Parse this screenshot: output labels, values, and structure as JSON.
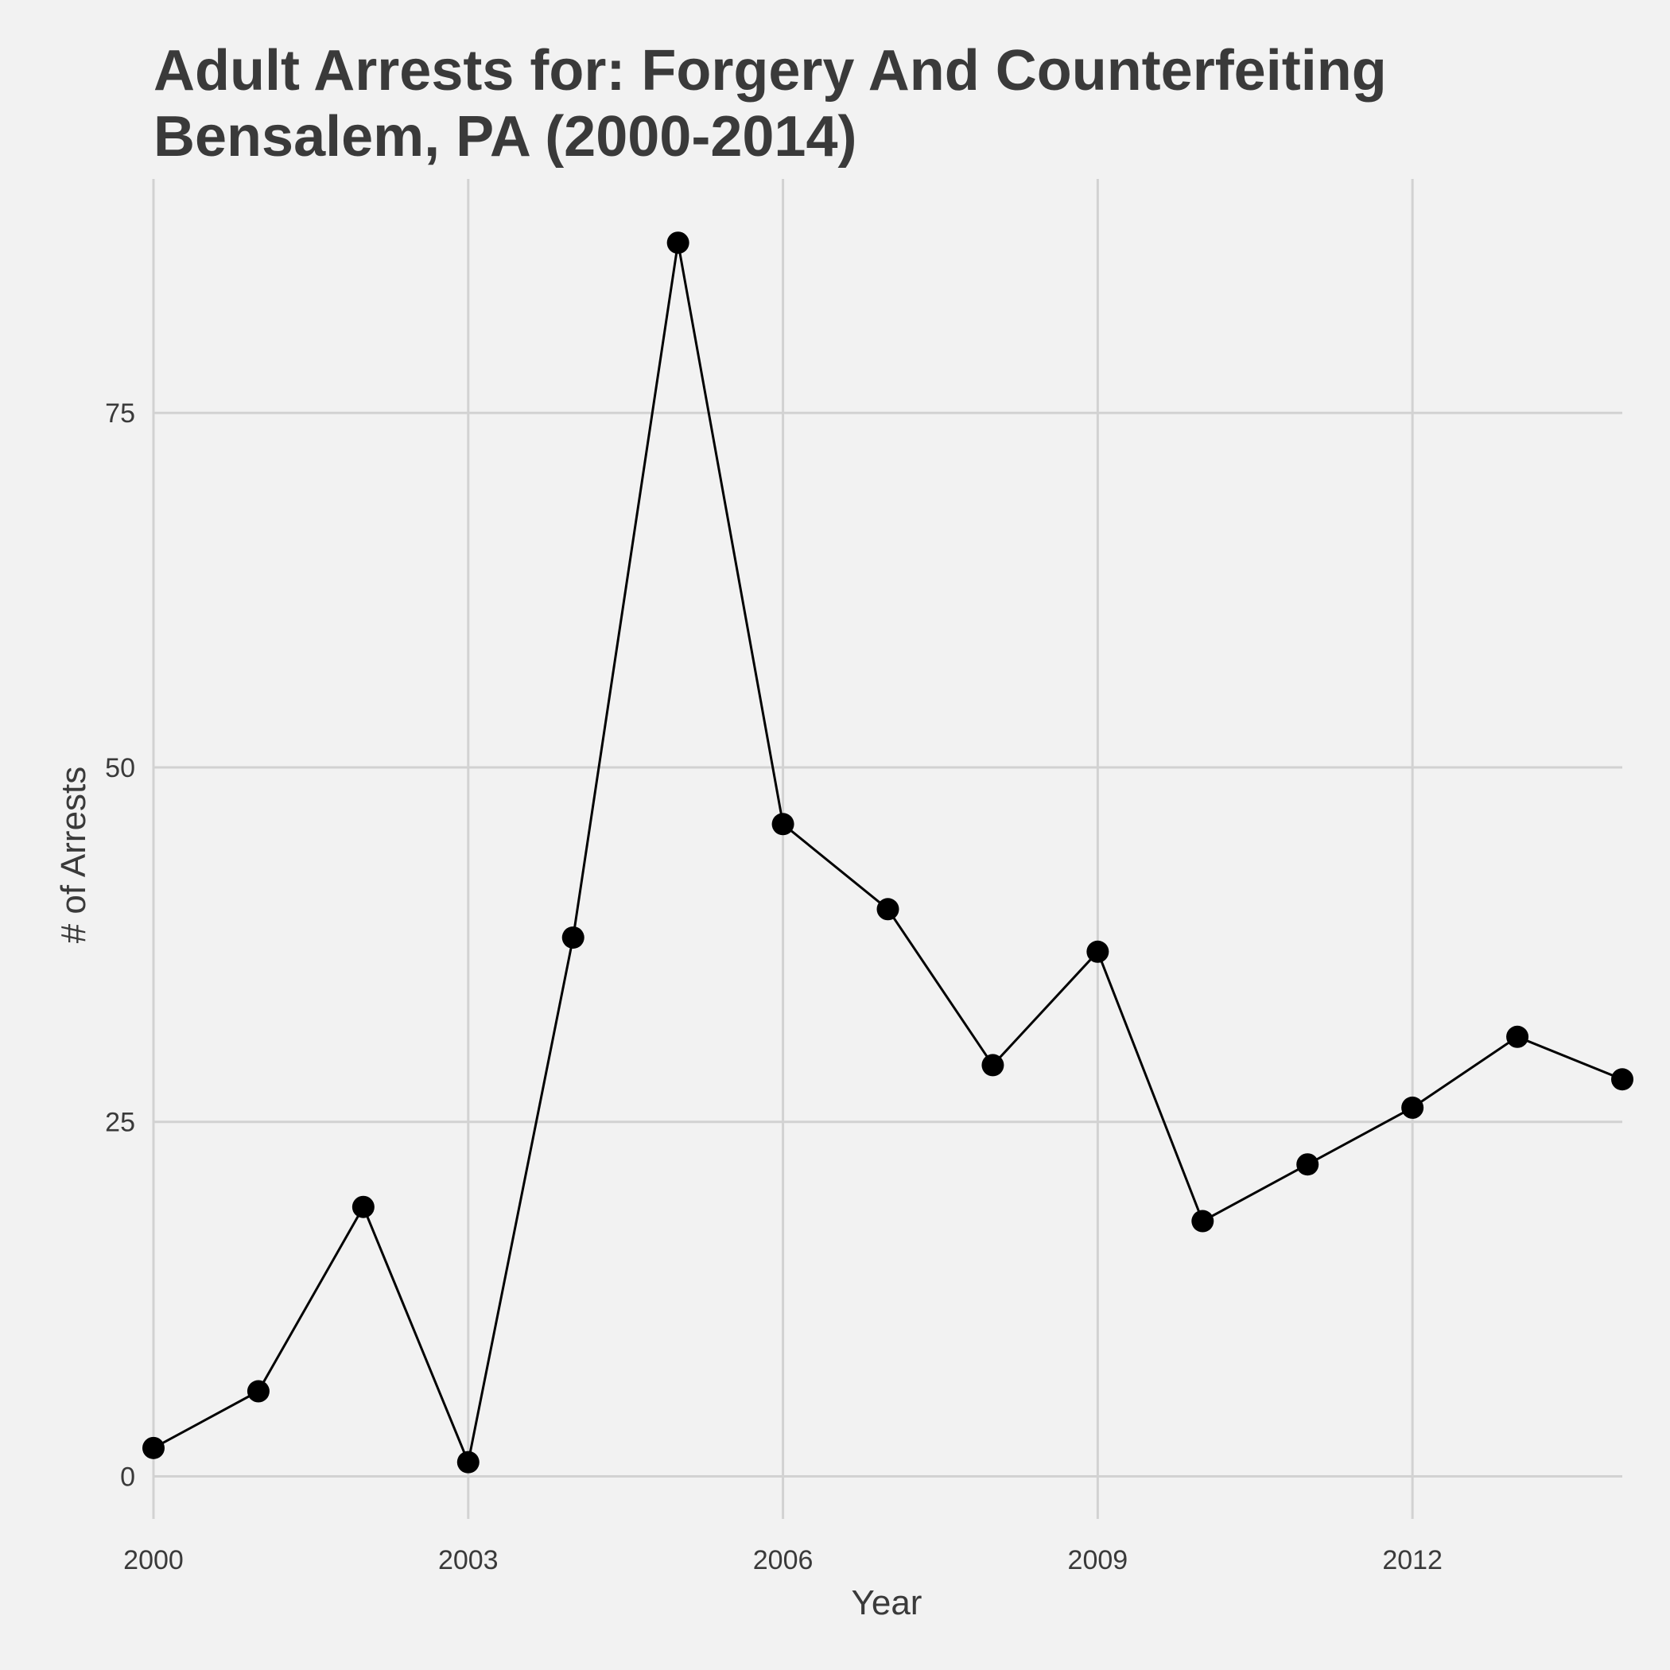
{
  "chart_data": {
    "type": "line",
    "title_line1": "Adult Arrests for: Forgery And Counterfeiting",
    "title_line2": "Bensalem, PA (2000-2014)",
    "xlabel": "Year",
    "ylabel": "# of Arrests",
    "x": [
      2000,
      2001,
      2002,
      2003,
      2004,
      2005,
      2006,
      2007,
      2008,
      2009,
      2010,
      2011,
      2012,
      2013,
      2014
    ],
    "values": [
      2,
      6,
      19,
      1,
      38,
      87,
      46,
      40,
      29,
      37,
      18,
      22,
      26,
      31,
      28
    ],
    "xlim": [
      2000,
      2014
    ],
    "ylim": [
      -3,
      91.5
    ],
    "x_ticks": [
      2000,
      2003,
      2006,
      2009,
      2012
    ],
    "y_ticks": [
      0,
      25,
      50,
      75
    ],
    "x_tick_labels": [
      "2000",
      "2003",
      "2006",
      "2009",
      "2012"
    ],
    "y_tick_labels": [
      "0",
      "25",
      "50",
      "75"
    ],
    "grid": true,
    "line_color": "#000000",
    "point_color": "#000000",
    "grid_color": "#d2d2d2",
    "background_color": "#f2f2f2"
  }
}
